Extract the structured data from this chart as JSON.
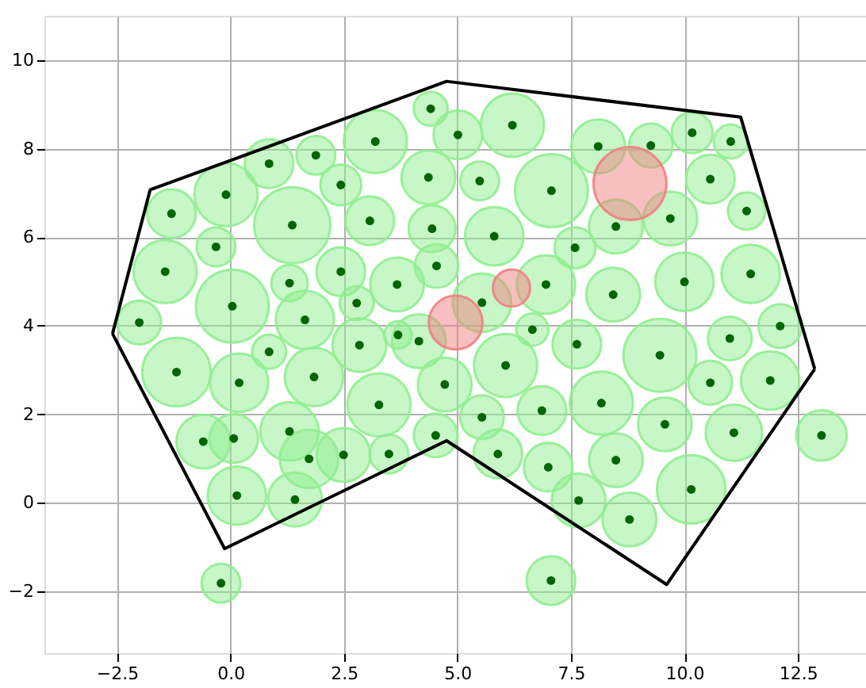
{
  "chart_data": {
    "type": "scatter",
    "xlim": [
      -4.1,
      14.0
    ],
    "ylim": [
      -3.4,
      11.0
    ],
    "xticks": [
      {
        "value": -2.5,
        "label": "−2.5"
      },
      {
        "value": 0,
        "label": "0.0"
      },
      {
        "value": 2.5,
        "label": "2.5"
      },
      {
        "value": 5,
        "label": "5.0"
      },
      {
        "value": 7.5,
        "label": "7.5"
      },
      {
        "value": 10,
        "label": "10.0"
      },
      {
        "value": 12.5,
        "label": "12.5"
      }
    ],
    "yticks": [
      {
        "value": -2,
        "label": "−2"
      },
      0,
      2,
      4,
      6,
      8,
      10
    ],
    "grid": true,
    "marker": "circle",
    "relative": false,
    "series": [
      {
        "type": "bubble",
        "color": "#90ee90",
        "x": [
          4.41,
          5.01,
          6.21,
          3.19,
          1.88,
          0.85,
          -0.1,
          -1.3,
          2.43,
          1.36,
          3.07,
          4.36,
          5.49,
          7.07,
          8.1,
          9.26,
          10.17,
          11.02,
          10.57,
          11.37,
          9.69,
          8.49,
          7.59,
          5.81,
          4.44,
          -0.32,
          -1.44,
          1.3,
          2.43,
          3.67,
          4.54,
          6.95,
          8.43,
          10.0,
          11.46,
          0.04,
          1.64,
          2.78,
          5.54,
          -2.01,
          3.69,
          4.15,
          2.84,
          0.85,
          6.65,
          7.63,
          9.46,
          11.0,
          12.11,
          -1.19,
          0.19,
          1.84,
          4.72,
          6.06,
          3.27,
          8.17,
          6.86,
          5.54,
          10.57,
          11.89,
          9.57,
          11.09,
          13.02,
          -0.6,
          0.07,
          1.3,
          1.73,
          2.49,
          3.49,
          4.52,
          5.89,
          7.0,
          8.49,
          10.15,
          0.14,
          1.42,
          7.67,
          8.79,
          -0.21,
          7.06
        ],
        "values": [
          8.9,
          8.31,
          8.53,
          8.16,
          7.85,
          7.66,
          6.96,
          6.53,
          7.18,
          6.27,
          6.37,
          7.35,
          7.27,
          7.05,
          8.05,
          8.07,
          8.36,
          8.16,
          7.31,
          6.59,
          6.42,
          6.24,
          5.76,
          6.02,
          6.19,
          5.78,
          5.22,
          4.96,
          5.22,
          4.93,
          5.35,
          4.93,
          4.7,
          4.99,
          5.17,
          4.44,
          4.13,
          4.51,
          4.52,
          4.07,
          3.79,
          3.65,
          3.56,
          3.41,
          3.91,
          3.58,
          3.33,
          3.71,
          3.99,
          2.95,
          2.71,
          2.84,
          2.67,
          3.1,
          2.21,
          2.25,
          2.08,
          1.93,
          2.71,
          2.76,
          1.77,
          1.58,
          1.52,
          1.38,
          1.45,
          1.61,
          0.99,
          1.08,
          1.1,
          1.52,
          1.1,
          0.8,
          0.96,
          0.3,
          0.16,
          0.07,
          0.05,
          -0.38,
          -1.82,
          -1.76
        ],
        "sizes": [
          0.2,
          0.41,
          0.69,
          0.69,
          0.26,
          0.41,
          0.69,
          0.41,
          0.29,
          1,
          0.41,
          0.5,
          0.26,
          0.92,
          0.5,
          0.33,
          0.29,
          0.2,
          0.41,
          0.24,
          0.5,
          0.5,
          0.29,
          0.59,
          0.38,
          0.26,
          0.69,
          0.23,
          0.41,
          0.5,
          0.33,
          0.59,
          0.5,
          0.59,
          0.59,
          0.92,
          0.59,
          0.2,
          0.59,
          0.33,
          0.13,
          0.5,
          0.5,
          0.2,
          0.18,
          0.41,
          0.92,
          0.33,
          0.33,
          0.81,
          0.59,
          0.59,
          0.5,
          0.69,
          0.69,
          0.69,
          0.41,
          0.33,
          0.33,
          0.59,
          0.5,
          0.55,
          0.44,
          0.5,
          0.41,
          0.59,
          0.59,
          0.5,
          0.26,
          0.33,
          0.41,
          0.41,
          0.5,
          0.81,
          0.59,
          0.5,
          0.5,
          0.5,
          0.26,
          0.41
        ]
      },
      {
        "type": "bubble",
        "color": "#f08080",
        "x": [
          8.8,
          4.96,
          6.19
        ],
        "values": [
          7.21,
          4.07,
          4.85
        ],
        "sizes": [
          0.92,
          0.5,
          0.24
        ]
      },
      {
        "type": "line",
        "color": "#000000",
        "marker": "none",
        "x": [
          -2.6,
          -1.77,
          4.76,
          11.24,
          12.87
        ],
        "values": [
          3.82,
          7.07,
          9.52,
          8.71,
          3.02
        ]
      },
      {
        "type": "line",
        "color": "#000000",
        "marker": "none",
        "x": [
          -2.6,
          -0.13,
          4.76,
          9.61,
          12.87
        ],
        "values": [
          3.82,
          -1.04,
          1.4,
          -1.85,
          3.02
        ]
      },
      {
        "type": "scatter",
        "color": "#006400",
        "x": [
          4.41,
          5.01,
          6.21,
          3.19,
          1.88,
          0.85,
          -0.1,
          -1.3,
          2.43,
          1.36,
          3.07,
          4.36,
          5.49,
          7.07,
          8.1,
          9.26,
          10.17,
          11.02,
          10.57,
          11.37,
          9.69,
          8.49,
          7.59,
          5.81,
          4.44,
          -0.32,
          -1.44,
          1.3,
          2.43,
          3.67,
          4.54,
          6.95,
          8.43,
          10.0,
          11.46,
          0.04,
          1.64,
          2.78,
          5.54,
          -2.01,
          3.69,
          4.15,
          2.84,
          0.85,
          6.65,
          7.63,
          9.46,
          11.0,
          12.11,
          -1.19,
          0.19,
          1.84,
          4.72,
          6.06,
          3.27,
          8.17,
          6.86,
          5.54,
          10.57,
          11.89,
          9.57,
          11.09,
          13.02,
          -0.6,
          0.07,
          1.3,
          1.73,
          2.49,
          3.49,
          4.52,
          5.89,
          7.0,
          8.49,
          10.15,
          0.14,
          1.42,
          7.67,
          8.79,
          -0.21,
          7.06
        ],
        "values": [
          8.9,
          8.31,
          8.53,
          8.16,
          7.85,
          7.66,
          6.96,
          6.53,
          7.18,
          6.27,
          6.37,
          7.35,
          7.27,
          7.05,
          8.05,
          8.07,
          8.36,
          8.16,
          7.31,
          6.59,
          6.42,
          6.24,
          5.76,
          6.02,
          6.19,
          5.78,
          5.22,
          4.96,
          5.22,
          4.93,
          5.35,
          4.93,
          4.7,
          4.99,
          5.17,
          4.44,
          4.13,
          4.51,
          4.52,
          4.07,
          3.79,
          3.65,
          3.56,
          3.41,
          3.91,
          3.58,
          3.33,
          3.71,
          3.99,
          2.95,
          2.71,
          2.84,
          2.67,
          3.1,
          2.21,
          2.25,
          2.08,
          1.93,
          2.71,
          2.76,
          1.77,
          1.58,
          1.52,
          1.38,
          1.45,
          1.61,
          0.99,
          1.08,
          1.1,
          1.52,
          1.1,
          0.8,
          0.96,
          0.3,
          0.16,
          0.07,
          0.05,
          -0.38,
          -1.82,
          -1.76
        ]
      }
    ]
  }
}
